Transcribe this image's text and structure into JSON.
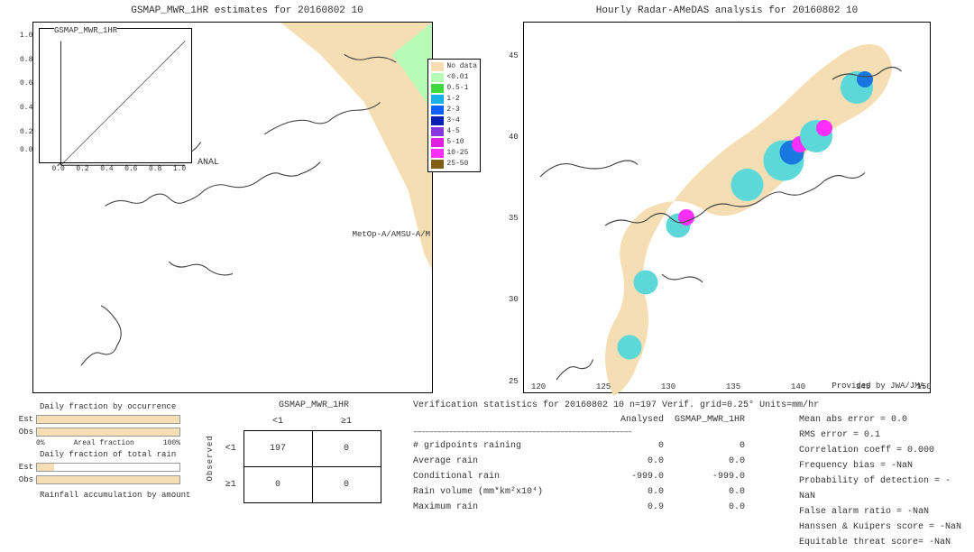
{
  "maps": {
    "left": {
      "title": "GSMAP_MWR_1HR estimates for 20160802 10",
      "inset_title": "GSMAP_MWR_1HR",
      "inset_yticks": [
        "1.0",
        "0.8",
        "0.6",
        "0.4",
        "0.2",
        "0.0"
      ],
      "inset_xticks": [
        "0.0",
        "0.2",
        "0.4",
        "0.6",
        "0.8",
        "1.0"
      ],
      "anal_label": "ANAL",
      "satellite_label": "MetOp-A/AMSU-A/M"
    },
    "right": {
      "title": "Hourly Radar-AMeDAS analysis for 20160802 10",
      "provider": "Provided by JWA/JMA",
      "yticks": [
        {
          "v": "45",
          "top_pct": 8
        },
        {
          "v": "40",
          "top_pct": 30
        },
        {
          "v": "35",
          "top_pct": 52
        },
        {
          "v": "30",
          "top_pct": 74
        },
        {
          "v": "25",
          "top_pct": 96
        }
      ],
      "xticks": [
        {
          "v": "120",
          "left_pct": 2
        },
        {
          "v": "125",
          "left_pct": 18
        },
        {
          "v": "130",
          "left_pct": 34
        },
        {
          "v": "135",
          "left_pct": 50
        },
        {
          "v": "140",
          "left_pct": 66
        },
        {
          "v": "145",
          "left_pct": 82
        },
        {
          "v": "150",
          "left_pct": 97
        }
      ]
    }
  },
  "legend": [
    {
      "label": "No data",
      "color": "#f5deb3"
    },
    {
      "label": "<0.01",
      "color": "#b6fcb6"
    },
    {
      "label": "0.5-1",
      "color": "#3fd83f"
    },
    {
      "label": "1-2",
      "color": "#18b0e8"
    },
    {
      "label": "2-3",
      "color": "#1060ff"
    },
    {
      "label": "3-4",
      "color": "#0820b0"
    },
    {
      "label": "4-5",
      "color": "#8838e0"
    },
    {
      "label": "5-10",
      "color": "#e020e0"
    },
    {
      "label": "10-25",
      "color": "#ff30ff"
    },
    {
      "label": "25-50",
      "color": "#806010"
    }
  ],
  "bars": {
    "occurrence": {
      "title": "Daily fraction by occurrence",
      "est_label": "Est",
      "obs_label": "Obs",
      "est_pct": 100,
      "obs_pct": 100,
      "scale_left": "0%",
      "scale_mid": "Areal fraction",
      "scale_right": "100%"
    },
    "totalrain": {
      "title": "Daily fraction of total rain",
      "est_label": "Est",
      "obs_label": "Obs",
      "est_pct": 12,
      "obs_pct": 100
    },
    "accum_title": "Rainfall accumulation by amount"
  },
  "contingency": {
    "title": "GSMAP_MWR_1HR",
    "side": "Observed",
    "col1": "<1",
    "col2": "≥1",
    "row1": "<1",
    "row2": "≥1",
    "c11": "197",
    "c12": "0",
    "c21": "0",
    "c22": "0"
  },
  "stats": {
    "header": "Verification statistics for 20160802 10  n=197  Verif. grid=0.25°  Units=mm/hr",
    "dash": "–––––––––––––––––––––––––––––––––––––––––––––––––––––––",
    "col_a": "Analysed",
    "col_b": "GSMAP_MWR_1HR",
    "rows": [
      {
        "label": "# gridpoints raining",
        "a": "0",
        "b": "0"
      },
      {
        "label": "Average rain",
        "a": "0.0",
        "b": "0.0"
      },
      {
        "label": "Conditional rain",
        "a": "-999.0",
        "b": "-999.0"
      },
      {
        "label": "Rain volume (mm*km²x10⁴)",
        "a": "0.0",
        "b": "0.0"
      },
      {
        "label": "Maximum rain",
        "a": "0.9",
        "b": "0.0"
      }
    ],
    "metrics": [
      "Mean abs error = 0.0",
      "RMS error = 0.1",
      "Correlation coeff = 0.000",
      "Frequency bias = -NaN",
      "Probability of detection = -NaN",
      "False alarm ratio = -NaN",
      "Hanssen & Kuipers score = -NaN",
      "Equitable threat score= -NaN"
    ]
  },
  "style": {
    "coast_color": "#444444",
    "nodata_fill": "#f5deb3",
    "rain_green": "#3fd83f",
    "rain_cyan": "#5cd8d8",
    "rain_blue": "#1878e0",
    "rain_magenta": "#ff30ff"
  }
}
